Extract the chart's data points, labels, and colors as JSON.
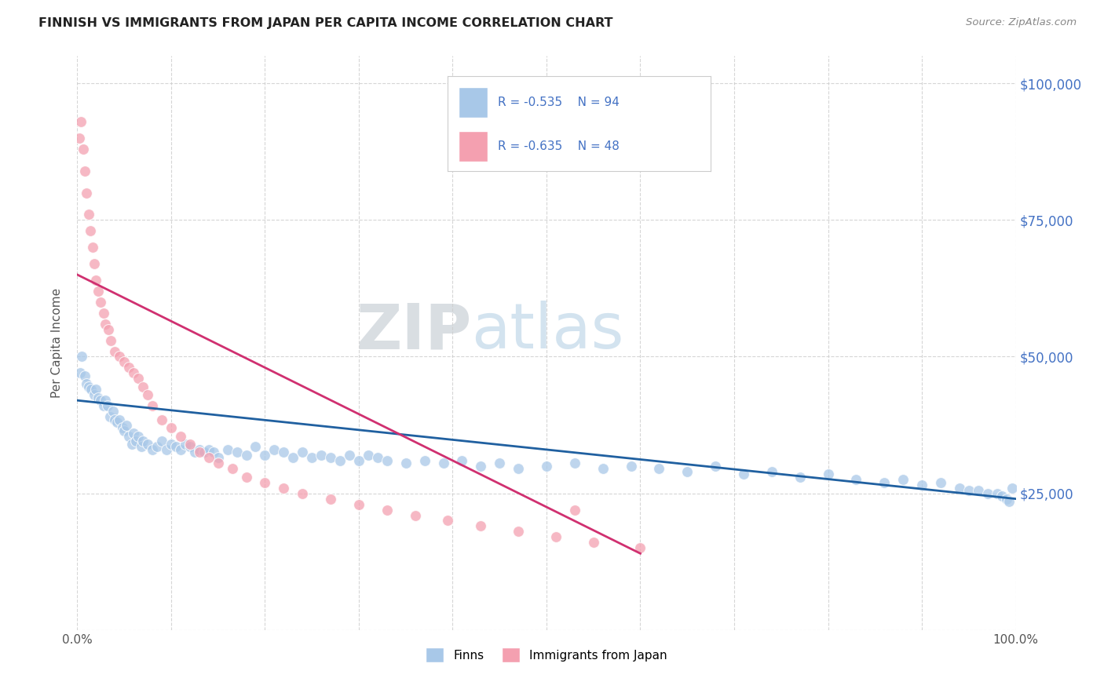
{
  "title": "FINNISH VS IMMIGRANTS FROM JAPAN PER CAPITA INCOME CORRELATION CHART",
  "source": "Source: ZipAtlas.com",
  "ylabel": "Per Capita Income",
  "watermark_zip": "ZIP",
  "watermark_atlas": "atlas",
  "ytick_positions": [
    0,
    25000,
    50000,
    75000,
    100000
  ],
  "ytick_labels": [
    "",
    "$25,000",
    "$50,000",
    "$75,000",
    "$100,000"
  ],
  "legend_blue_r": "-0.535",
  "legend_blue_n": "94",
  "legend_pink_r": "-0.635",
  "legend_pink_n": "48",
  "legend_label_blue": "Finns",
  "legend_label_pink": "Immigrants from Japan",
  "blue_color": "#a8c8e8",
  "pink_color": "#f4a0b0",
  "line_blue_color": "#2060a0",
  "line_pink_color": "#d03070",
  "background_color": "#ffffff",
  "blue_scatter_x": [
    0.3,
    0.5,
    0.8,
    1.0,
    1.2,
    1.5,
    1.8,
    2.0,
    2.2,
    2.5,
    2.8,
    3.0,
    3.2,
    3.5,
    3.8,
    4.0,
    4.2,
    4.5,
    4.8,
    5.0,
    5.2,
    5.5,
    5.8,
    6.0,
    6.2,
    6.5,
    6.8,
    7.0,
    7.5,
    8.0,
    8.5,
    9.0,
    9.5,
    10.0,
    10.5,
    11.0,
    11.5,
    12.0,
    12.5,
    13.0,
    13.5,
    14.0,
    14.5,
    15.0,
    16.0,
    17.0,
    18.0,
    19.0,
    20.0,
    21.0,
    22.0,
    23.0,
    24.0,
    25.0,
    26.0,
    27.0,
    28.0,
    29.0,
    30.0,
    31.0,
    32.0,
    33.0,
    35.0,
    37.0,
    39.0,
    41.0,
    43.0,
    45.0,
    47.0,
    50.0,
    53.0,
    56.0,
    59.0,
    62.0,
    65.0,
    68.0,
    71.0,
    74.0,
    77.0,
    80.0,
    83.0,
    86.0,
    88.0,
    90.0,
    92.0,
    94.0,
    95.0,
    96.0,
    97.0,
    98.0,
    98.5,
    99.0,
    99.3,
    99.6
  ],
  "blue_scatter_y": [
    47000,
    50000,
    46500,
    45000,
    44500,
    44000,
    43000,
    44000,
    42500,
    42000,
    41000,
    42000,
    41000,
    39000,
    40000,
    38500,
    38000,
    38500,
    37000,
    36500,
    37500,
    35500,
    34000,
    36000,
    34500,
    35500,
    33500,
    34500,
    34000,
    33000,
    33500,
    34500,
    33000,
    34000,
    33500,
    33000,
    34000,
    33500,
    32500,
    33000,
    32500,
    33000,
    32500,
    31500,
    33000,
    32500,
    32000,
    33500,
    32000,
    33000,
    32500,
    31500,
    32500,
    31500,
    32000,
    31500,
    31000,
    32000,
    31000,
    32000,
    31500,
    31000,
    30500,
    31000,
    30500,
    31000,
    30000,
    30500,
    29500,
    30000,
    30500,
    29500,
    30000,
    29500,
    29000,
    30000,
    28500,
    29000,
    28000,
    28500,
    27500,
    27000,
    27500,
    26500,
    27000,
    26000,
    25500,
    25500,
    25000,
    25000,
    24500,
    24000,
    23500,
    26000
  ],
  "pink_scatter_x": [
    0.2,
    0.4,
    0.6,
    0.8,
    1.0,
    1.2,
    1.4,
    1.6,
    1.8,
    2.0,
    2.2,
    2.5,
    2.8,
    3.0,
    3.3,
    3.6,
    4.0,
    4.5,
    5.0,
    5.5,
    6.0,
    6.5,
    7.0,
    7.5,
    8.0,
    9.0,
    10.0,
    11.0,
    12.0,
    13.0,
    14.0,
    15.0,
    16.5,
    18.0,
    20.0,
    22.0,
    24.0,
    27.0,
    30.0,
    33.0,
    36.0,
    39.5,
    43.0,
    47.0,
    51.0,
    55.0,
    60.0,
    53.0
  ],
  "pink_scatter_y": [
    90000,
    93000,
    88000,
    84000,
    80000,
    76000,
    73000,
    70000,
    67000,
    64000,
    62000,
    60000,
    58000,
    56000,
    55000,
    53000,
    51000,
    50000,
    49000,
    48000,
    47000,
    46000,
    44500,
    43000,
    41000,
    38500,
    37000,
    35500,
    34000,
    32500,
    31500,
    30500,
    29500,
    28000,
    27000,
    26000,
    25000,
    24000,
    23000,
    22000,
    21000,
    20000,
    19000,
    18000,
    17000,
    16000,
    15000,
    22000
  ],
  "blue_trendline_x": [
    0.0,
    100.0
  ],
  "blue_trendline_y": [
    42000,
    24000
  ],
  "pink_trendline_x": [
    0.0,
    60.0
  ],
  "pink_trendline_y": [
    65000,
    14000
  ],
  "xlim": [
    0,
    100
  ],
  "ylim": [
    0,
    105000
  ]
}
